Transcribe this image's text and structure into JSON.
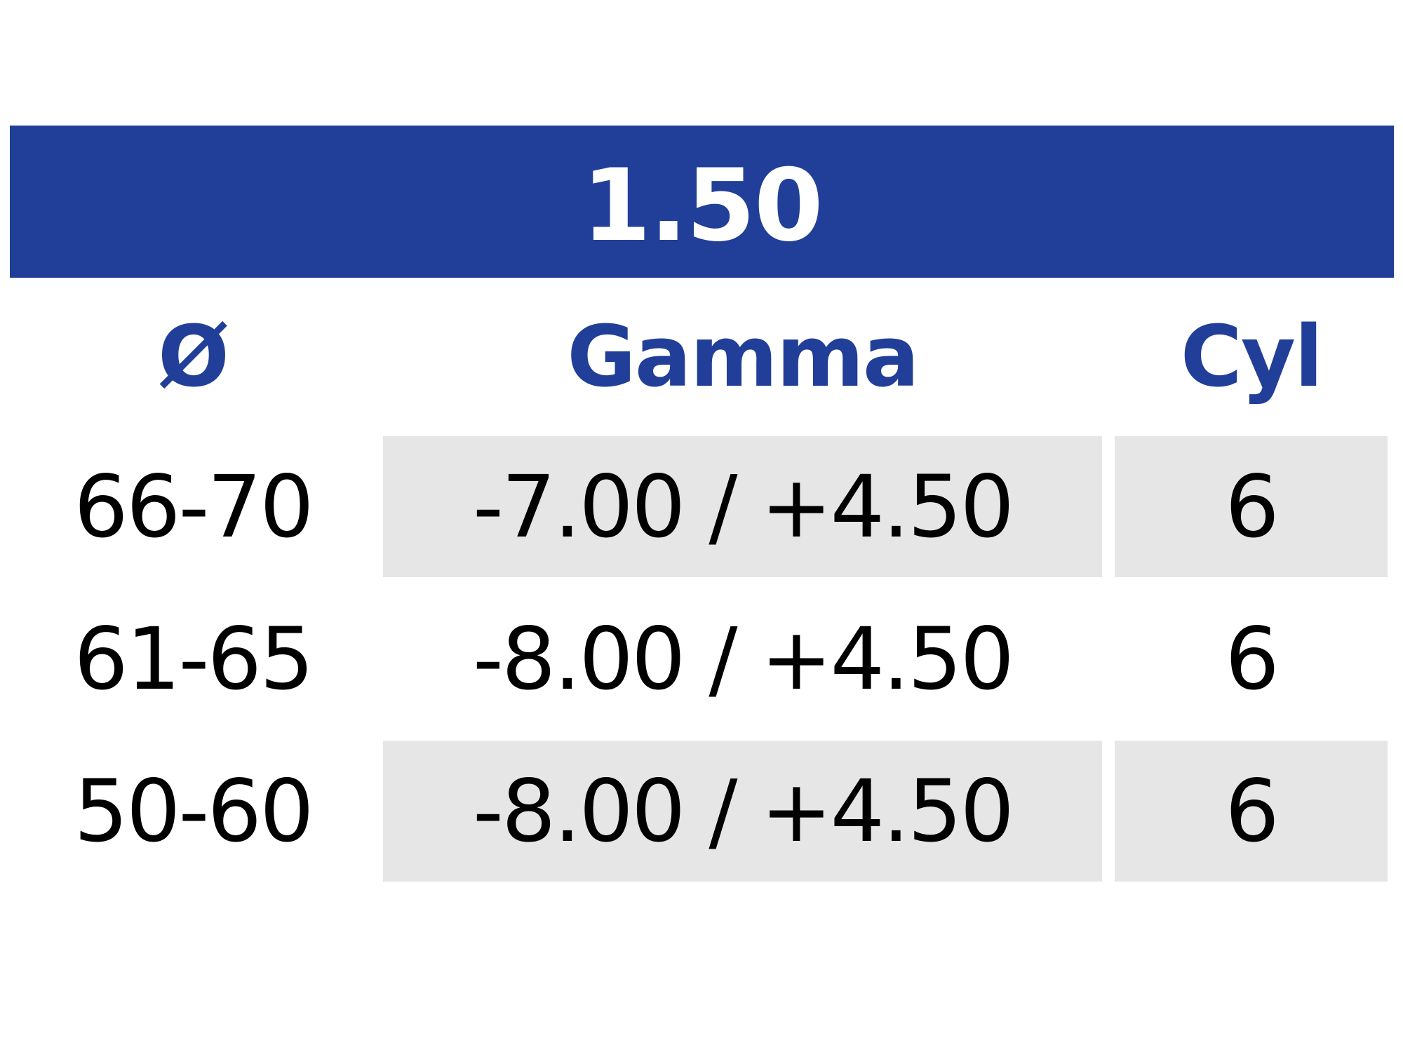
{
  "title": "1.50",
  "colors": {
    "header_bg": "#213f98",
    "header_text": "#213f98",
    "row_shade": "#e6e6e6"
  },
  "columns": [
    "Ø",
    "Gamma",
    "Cyl"
  ],
  "rows": [
    [
      "66-70",
      "-7.00 / +4.50",
      "6"
    ],
    [
      "61-65",
      "-8.00 / +4.50",
      "6"
    ],
    [
      "50-60",
      "-8.00 / +4.50",
      "6"
    ]
  ]
}
